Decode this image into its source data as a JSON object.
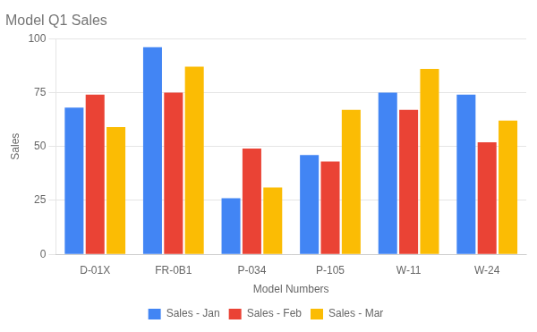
{
  "chart_data": {
    "type": "bar",
    "title": "Model Q1 Sales",
    "xlabel": "Model Numbers",
    "ylabel": "Sales",
    "categories": [
      "D-01X",
      "FR-0B1",
      "P-034",
      "P-105",
      "W-11",
      "W-24"
    ],
    "series": [
      {
        "name": "Sales - Jan",
        "color": "#4285F4",
        "values": [
          68,
          96,
          26,
          46,
          75,
          74
        ]
      },
      {
        "name": "Sales - Feb",
        "color": "#EA4335",
        "values": [
          74,
          75,
          49,
          43,
          67,
          52
        ]
      },
      {
        "name": "Sales - Mar",
        "color": "#FBBC04",
        "values": [
          59,
          87,
          31,
          67,
          86,
          62
        ]
      }
    ],
    "ylim": [
      0,
      100
    ],
    "yticks": [
      0,
      25,
      50,
      75,
      100
    ],
    "grid": true,
    "legend": "bottom"
  }
}
